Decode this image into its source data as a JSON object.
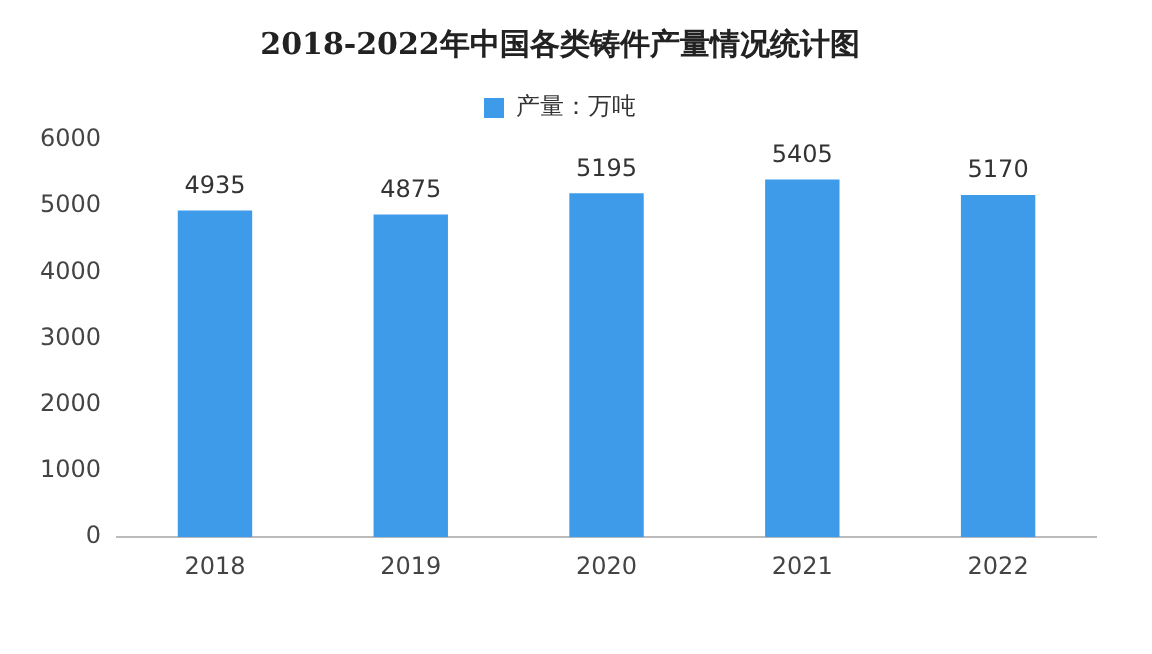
{
  "chart_data": {
    "type": "bar",
    "title": "2018-2022年中国各类铸件产量情况统计图",
    "categories": [
      "2018",
      "2019",
      "2020",
      "2021",
      "2022"
    ],
    "series": [
      {
        "name": "产量：万吨",
        "color": "#3d9be9",
        "values": [
          4935,
          4875,
          5195,
          5405,
          5170
        ]
      }
    ],
    "ylim": [
      0,
      6000
    ],
    "yticks": [
      0,
      1000,
      2000,
      3000,
      4000,
      5000,
      6000
    ],
    "grid": false,
    "legend": "top",
    "data_labels": true
  }
}
